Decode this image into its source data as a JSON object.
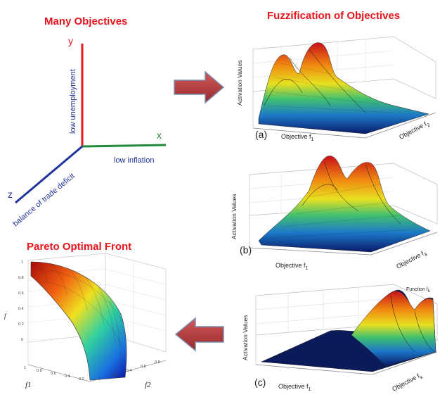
{
  "titles": {
    "many_objectives": "Many Objectives",
    "fuzzification": "Fuzzification of Objectives",
    "pareto": "Pareto Optimal Front"
  },
  "axes3d": {
    "y_letter": "y",
    "x_letter": "x",
    "z_letter": "z",
    "y_label": "low unemployment",
    "x_label": "low inflation",
    "z_label": "balance of trade deficit",
    "colors": {
      "y": "#e8141c",
      "x": "#1f8a3a",
      "z": "#22349b"
    }
  },
  "panels": [
    {
      "tag": "(a)",
      "zlabel": "Activation Values",
      "xlabel": "Objective f",
      "xsub": "1",
      "ylabel": "Objective f",
      "ysub": "2"
    },
    {
      "tag": "(b)",
      "zlabel": "Activation Values",
      "xlabel": "Objective f",
      "xsub": "1",
      "ylabel": "Objective f",
      "ysub": "3"
    },
    {
      "tag": "(c)",
      "zlabel": "Activation Values",
      "xlabel": "Objective f",
      "xsub": "1",
      "ylabel": "Objective f",
      "ysub": "k",
      "extra": "Function f",
      "extrasub": "k"
    }
  ],
  "pareto": {
    "xlabel": "f1",
    "ylabel": "f2",
    "zlabel": "f"
  },
  "arrow_color": "#b8383a"
}
